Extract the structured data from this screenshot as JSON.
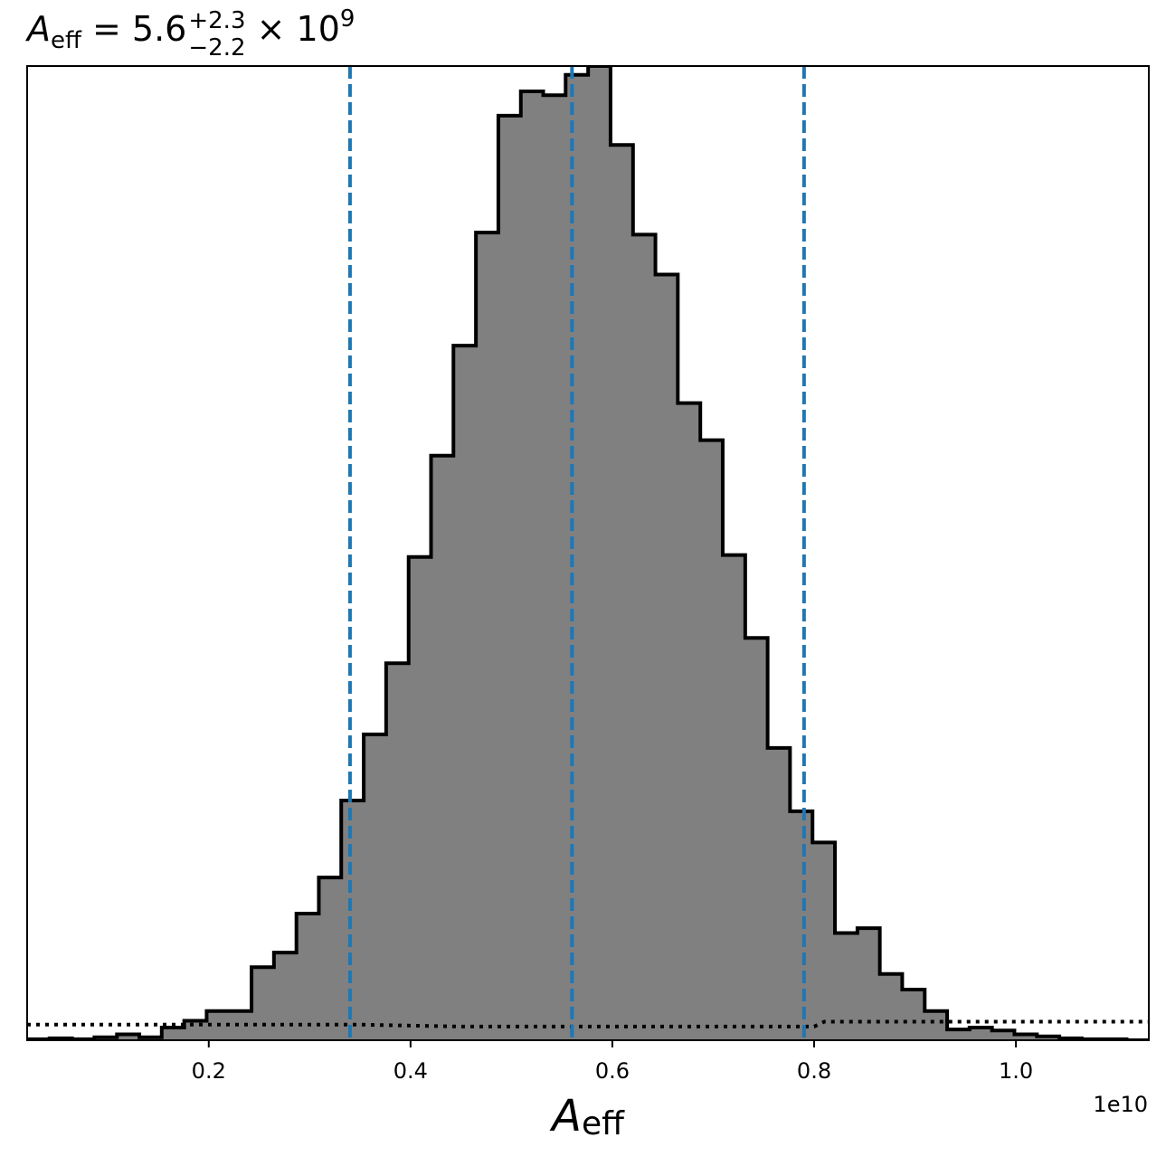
{
  "chart_data": {
    "type": "histogram",
    "title": {
      "variable": "A",
      "variable_subscript": "eff",
      "equals": " = 5.6",
      "upper_error": "+2.3",
      "lower_error": "−2.2",
      "times": " × 10",
      "exponent": "9"
    },
    "xlabel": {
      "variable": "A",
      "subscript": "eff"
    },
    "x_offset_label": "1e10",
    "xlim": [
      0.02,
      1.1317
    ],
    "x_ticks": [
      {
        "value": 0.2,
        "label": "0.2"
      },
      {
        "value": 0.4,
        "label": "0.4"
      },
      {
        "value": 0.6,
        "label": "0.6"
      },
      {
        "value": 0.8,
        "label": "0.8"
      },
      {
        "value": 1.0,
        "label": "1.0"
      }
    ],
    "ylim": [
      0,
      1.0
    ],
    "y_ticks_shown": false,
    "grid": false,
    "bin_edges": [
      0.02,
      0.0422,
      0.0645,
      0.0867,
      0.109,
      0.1312,
      0.1534,
      0.1757,
      0.1979,
      0.2202,
      0.2424,
      0.2646,
      0.2869,
      0.3091,
      0.3313,
      0.3536,
      0.3758,
      0.3981,
      0.4203,
      0.4425,
      0.4648,
      0.487,
      0.5093,
      0.5315,
      0.5537,
      0.576,
      0.5982,
      0.6205,
      0.6427,
      0.6649,
      0.6872,
      0.7094,
      0.7317,
      0.7539,
      0.7761,
      0.7984,
      0.8206,
      0.8429,
      0.8651,
      0.8873,
      0.9096,
      0.9318,
      0.954,
      0.9763,
      0.9985,
      1.0208,
      1.043,
      1.0652,
      1.0875,
      1.1097,
      1.1317
    ],
    "bin_heights": [
      0.001,
      0.002,
      0.001,
      0.003,
      0.006,
      0.003,
      0.013,
      0.02,
      0.03,
      0.03,
      0.075,
      0.09,
      0.13,
      0.167,
      0.246,
      0.314,
      0.387,
      0.496,
      0.6,
      0.713,
      0.829,
      0.949,
      0.974,
      0.97,
      0.991,
      1.0,
      0.919,
      0.827,
      0.786,
      0.654,
      0.616,
      0.498,
      0.413,
      0.3,
      0.235,
      0.203,
      0.11,
      0.115,
      0.068,
      0.052,
      0.03,
      0.011,
      0.013,
      0.01,
      0.006,
      0.004,
      0.002,
      0.001,
      0.001,
      0.0
    ],
    "quantile_lines": [
      0.34,
      0.56,
      0.79
    ],
    "prior_dotted_line": [
      {
        "x": 0.02,
        "y": 0.016
      },
      {
        "x": 0.35,
        "y": 0.016
      },
      {
        "x": 0.45,
        "y": 0.014
      },
      {
        "x": 0.8,
        "y": 0.014
      },
      {
        "x": 0.81,
        "y": 0.019
      },
      {
        "x": 1.1317,
        "y": 0.019
      }
    ],
    "colors": {
      "fill": "#808080",
      "edge": "#000000",
      "quantile_line": "#1f77b4",
      "prior_line": "#000000"
    }
  }
}
